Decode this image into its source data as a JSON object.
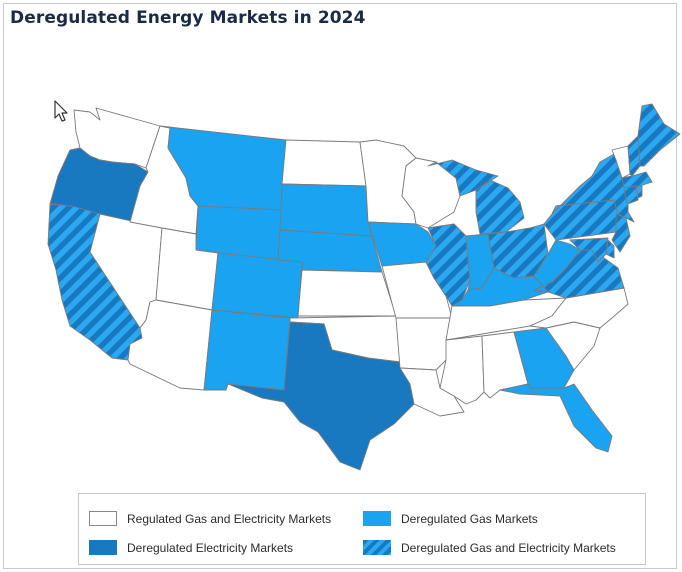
{
  "title": "Deregulated Energy Markets in 2024",
  "categories": {
    "regulated": {
      "label": "Regulated Gas and Electricity Markets",
      "color": "#ffffff"
    },
    "gas": {
      "label": "Deregulated Gas Markets",
      "color": "#1aa3f0"
    },
    "electricity": {
      "label": "Deregulated Electricity Markets",
      "color": "#1878c0"
    },
    "both": {
      "label": "Deregulated Gas and Electricity Markets",
      "color_a": "#1878c0",
      "color_b": "#2aa9f2"
    }
  },
  "states": {
    "WA": "regulated",
    "OR": "electricity",
    "CA": "both",
    "NV": "regulated",
    "ID": "regulated",
    "MT": "gas",
    "WY": "gas",
    "UT": "regulated",
    "AZ": "regulated",
    "CO": "gas",
    "NM": "gas",
    "ND": "regulated",
    "SD": "gas",
    "NE": "gas",
    "KS": "regulated",
    "OK": "regulated",
    "TX": "electricity",
    "MN": "regulated",
    "IA": "gas",
    "MO": "regulated",
    "AR": "regulated",
    "LA": "regulated",
    "WI": "regulated",
    "IL": "both",
    "MI": "both",
    "IN": "gas",
    "OH": "both",
    "KY": "gas",
    "TN": "regulated",
    "MS": "regulated",
    "AL": "regulated",
    "GA": "gas",
    "FL": "gas",
    "SC": "regulated",
    "NC": "regulated",
    "VA": "both",
    "WV": "gas",
    "PA": "both",
    "NY": "both",
    "VT": "regulated",
    "NH": "both",
    "ME": "both",
    "MA": "both",
    "CT": "both",
    "RI": "both",
    "NJ": "both",
    "DE": "both",
    "MD": "both"
  },
  "icons": {
    "cursor": "arrow-cursor-icon"
  }
}
